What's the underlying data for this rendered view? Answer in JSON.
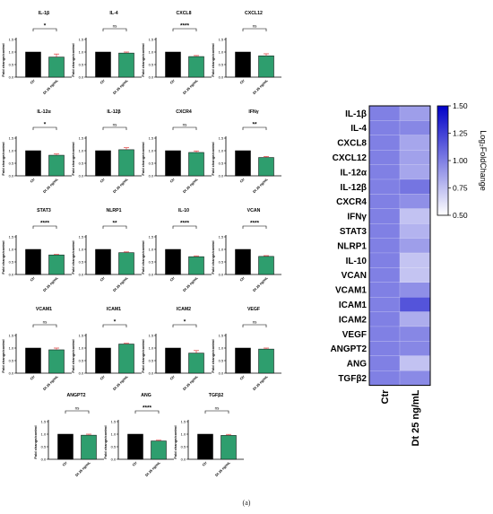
{
  "caption": "(a)",
  "colors": {
    "ctr": "#000000",
    "treated": "#2e9e6e",
    "error": "#e05252",
    "heat_low": "#ffffff",
    "heat_high": "#0000c8"
  },
  "chart_data": [
    {
      "type": "bar",
      "title": "IL-1β",
      "categories": [
        "Ctr",
        "Dt 25 ng/mL"
      ],
      "values": [
        1.0,
        0.8
      ],
      "errors": [
        0,
        0.12
      ],
      "ylabel": "Fold change/control",
      "ylim": [
        0,
        1.5
      ],
      "yticks": [
        "0.0",
        "0.5",
        "1.0",
        "1.5"
      ],
      "significance": "*"
    },
    {
      "type": "bar",
      "title": "IL-4",
      "categories": [
        "Ctr",
        "Dt 25 ng/mL"
      ],
      "values": [
        1.0,
        0.96
      ],
      "errors": [
        0,
        0.04
      ],
      "ylabel": "Fold change/control",
      "ylim": [
        0,
        1.5
      ],
      "yticks": [
        "0.0",
        "0.5",
        "1.0",
        "1.5"
      ],
      "significance": "ns"
    },
    {
      "type": "bar",
      "title": "CXCL8",
      "categories": [
        "Ctr",
        "Dt 25 ng/mL"
      ],
      "values": [
        1.0,
        0.82
      ],
      "errors": [
        0,
        0.04
      ],
      "ylabel": "Fold change/control",
      "ylim": [
        0,
        1.5
      ],
      "yticks": [
        "0.0",
        "0.5",
        "1.0",
        "1.5"
      ],
      "significance": "****"
    },
    {
      "type": "bar",
      "title": "CXCL12",
      "categories": [
        "Ctr",
        "Dt 25 ng/mL"
      ],
      "values": [
        1.0,
        0.85
      ],
      "errors": [
        0,
        0.08
      ],
      "ylabel": "Fold change/control",
      "ylim": [
        0,
        1.5
      ],
      "yticks": [
        "0.0",
        "0.5",
        "1.0",
        "1.5"
      ],
      "significance": "ns"
    },
    {
      "type": "bar",
      "title": "IL-12α",
      "categories": [
        "Ctr",
        "Dt 25 ng/mL"
      ],
      "values": [
        1.0,
        0.82
      ],
      "errors": [
        0,
        0.05
      ],
      "ylabel": "Fold change/control",
      "ylim": [
        0,
        1.5
      ],
      "yticks": [
        "0.0",
        "0.5",
        "1.0",
        "1.5"
      ],
      "significance": "*"
    },
    {
      "type": "bar",
      "title": "IL-12β",
      "categories": [
        "Ctr",
        "Dt 25 ng/mL"
      ],
      "values": [
        1.0,
        1.04
      ],
      "errors": [
        0,
        0.08
      ],
      "ylabel": "Fold change/control",
      "ylim": [
        0,
        1.5
      ],
      "yticks": [
        "0.0",
        "0.5",
        "1.0",
        "1.5"
      ],
      "significance": "ns"
    },
    {
      "type": "bar",
      "title": "CXCR4",
      "categories": [
        "Ctr",
        "Dt 25 ng/mL"
      ],
      "values": [
        1.0,
        0.93
      ],
      "errors": [
        0,
        0.06
      ],
      "ylabel": "Fold change/control",
      "ylim": [
        0,
        1.5
      ],
      "yticks": [
        "0.0",
        "0.5",
        "1.0",
        "1.5"
      ],
      "significance": "ns"
    },
    {
      "type": "bar",
      "title": "IFNγ",
      "categories": [
        "Ctr",
        "Dt 25 ng/mL"
      ],
      "values": [
        1.0,
        0.73
      ],
      "errors": [
        0,
        0.04
      ],
      "ylabel": "Fold change/control",
      "ylim": [
        0,
        1.5
      ],
      "yticks": [
        "0.0",
        "0.5",
        "1.0",
        "1.5"
      ],
      "significance": "**"
    },
    {
      "type": "bar",
      "title": "STAT3",
      "categories": [
        "Ctr",
        "Dt 25 ng/mL"
      ],
      "values": [
        1.0,
        0.78
      ],
      "errors": [
        0,
        0.02
      ],
      "ylabel": "Fold change/control",
      "ylim": [
        0,
        1.5
      ],
      "yticks": [
        "0.0",
        "0.5",
        "1.0",
        "1.5"
      ],
      "significance": "****"
    },
    {
      "type": "bar",
      "title": "NLRP1",
      "categories": [
        "Ctr",
        "Dt 25 ng/mL"
      ],
      "values": [
        1.0,
        0.87
      ],
      "errors": [
        0,
        0.03
      ],
      "ylabel": "Fold change/control",
      "ylim": [
        0,
        1.5
      ],
      "yticks": [
        "0.0",
        "0.5",
        "1.0",
        "1.5"
      ],
      "significance": "**"
    },
    {
      "type": "bar",
      "title": "IL-10",
      "categories": [
        "Ctr",
        "Dt 25 ng/mL"
      ],
      "values": [
        1.0,
        0.71
      ],
      "errors": [
        0,
        0.03
      ],
      "ylabel": "Fold change/control",
      "ylim": [
        0,
        1.5
      ],
      "yticks": [
        "0.0",
        "0.5",
        "1.0",
        "1.5"
      ],
      "significance": "****"
    },
    {
      "type": "bar",
      "title": "VCAN",
      "categories": [
        "Ctr",
        "Dt 25 ng/mL"
      ],
      "values": [
        1.0,
        0.72
      ],
      "errors": [
        0,
        0.03
      ],
      "ylabel": "Fold change/control",
      "ylim": [
        0,
        1.5
      ],
      "yticks": [
        "0.0",
        "0.5",
        "1.0",
        "1.5"
      ],
      "significance": "****"
    },
    {
      "type": "bar",
      "title": "VCAM1",
      "categories": [
        "Ctr",
        "Dt 25 ng/mL"
      ],
      "values": [
        1.0,
        0.93
      ],
      "errors": [
        0,
        0.07
      ],
      "ylabel": "Fold change/control",
      "ylim": [
        0,
        1.5
      ],
      "yticks": [
        "0.0",
        "0.5",
        "1.0",
        "1.5"
      ],
      "significance": "ns"
    },
    {
      "type": "bar",
      "title": "ICAM1",
      "categories": [
        "Ctr",
        "Dt 25 ng/mL"
      ],
      "values": [
        1.0,
        1.16
      ],
      "errors": [
        0,
        0.03
      ],
      "ylabel": "Fold change/control",
      "ylim": [
        0,
        1.5
      ],
      "yticks": [
        "0.0",
        "0.5",
        "1.0",
        "1.5"
      ],
      "significance": "*"
    },
    {
      "type": "bar",
      "title": "ICAM2",
      "categories": [
        "Ctr",
        "Dt 25 ng/mL"
      ],
      "values": [
        1.0,
        0.8
      ],
      "errors": [
        0,
        0.1
      ],
      "ylabel": "Fold change/control",
      "ylim": [
        0,
        1.5
      ],
      "yticks": [
        "0.0",
        "0.5",
        "1.0",
        "1.5"
      ],
      "significance": "*"
    },
    {
      "type": "bar",
      "title": "VEGF",
      "categories": [
        "Ctr",
        "Dt 25 ng/mL"
      ],
      "values": [
        1.0,
        0.96
      ],
      "errors": [
        0,
        0.04
      ],
      "ylabel": "Fold change/control",
      "ylim": [
        0,
        1.5
      ],
      "yticks": [
        "0.0",
        "0.5",
        "1.0",
        "1.5"
      ],
      "significance": "ns"
    },
    {
      "type": "bar",
      "title": "ANGPT2",
      "categories": [
        "Ctr",
        "Dt 25 ng/mL"
      ],
      "values": [
        1.0,
        0.96
      ],
      "errors": [
        0,
        0.04
      ],
      "ylabel": "Fold change/control",
      "ylim": [
        0,
        1.5
      ],
      "yticks": [
        "0.0",
        "0.5",
        "1.0",
        "1.5"
      ],
      "significance": "ns"
    },
    {
      "type": "bar",
      "title": "ANG",
      "categories": [
        "Ctr",
        "Dt 25 ng/mL"
      ],
      "values": [
        1.0,
        0.73
      ],
      "errors": [
        0,
        0.03
      ],
      "ylabel": "Fold change/control",
      "ylim": [
        0,
        1.5
      ],
      "yticks": [
        "0.0",
        "0.5",
        "1.0",
        "1.5"
      ],
      "significance": "****"
    },
    {
      "type": "bar",
      "title": "TGFβ2",
      "categories": [
        "Ctr",
        "Dt 25 ng/mL"
      ],
      "values": [
        1.0,
        0.95
      ],
      "errors": [
        0,
        0.04
      ],
      "ylabel": "Fold change/control",
      "ylim": [
        0,
        1.5
      ],
      "yticks": [
        "0.0",
        "0.5",
        "1.0",
        "1.5"
      ],
      "significance": "ns"
    },
    {
      "type": "heatmap",
      "columns": [
        "Ctr",
        "Dt 25 ng/mL"
      ],
      "rows": [
        "IL-1β",
        "IL-4",
        "CXCL8",
        "CXCL12",
        "IL-12α",
        "IL-12β",
        "CXCR4",
        "IFNγ",
        "STAT3",
        "NLRP1",
        "IL-10",
        "VCAN",
        "VCAM1",
        "ICAM1",
        "ICAM2",
        "VEGF",
        "ANGPT2",
        "ANG",
        "TGFβ2"
      ],
      "values": [
        [
          1.0,
          0.88
        ],
        [
          1.0,
          0.97
        ],
        [
          1.0,
          0.85
        ],
        [
          1.0,
          0.87
        ],
        [
          1.0,
          0.85
        ],
        [
          1.0,
          1.04
        ],
        [
          1.0,
          0.94
        ],
        [
          1.0,
          0.74
        ],
        [
          1.0,
          0.8
        ],
        [
          1.0,
          0.88
        ],
        [
          1.0,
          0.73
        ],
        [
          1.0,
          0.73
        ],
        [
          1.0,
          0.94
        ],
        [
          1.0,
          1.17
        ],
        [
          1.0,
          0.82
        ],
        [
          1.0,
          0.97
        ],
        [
          1.0,
          0.97
        ],
        [
          1.0,
          0.74
        ],
        [
          1.0,
          0.96
        ]
      ],
      "colorbar_label": "Log₂FoldChange",
      "colorbar_range": [
        0.5,
        1.5
      ],
      "colorbar_ticks": [
        "0.50",
        "0.75",
        "1.00",
        "1.25",
        "1.50"
      ]
    }
  ]
}
